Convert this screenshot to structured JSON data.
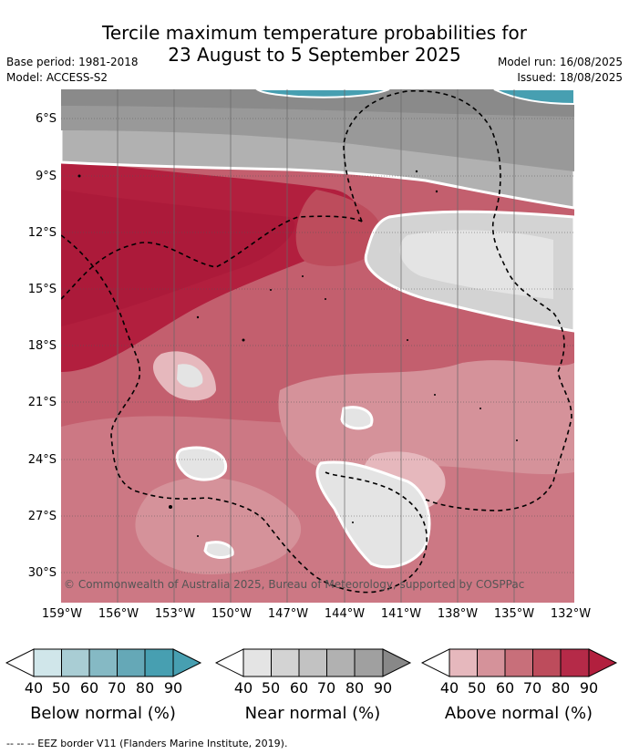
{
  "title": {
    "line1": "Tercile maximum temperature probabilities for",
    "line2": "23 August to 5 September 2025"
  },
  "left_meta": {
    "base_period": "Base period: 1981-2018",
    "model": "Model: ACCESS-S2"
  },
  "right_meta": {
    "model_run": "Model run: 16/08/2025",
    "issued": "Issued: 18/08/2025"
  },
  "map": {
    "lat_labels": [
      "6°S",
      "9°S",
      "12°S",
      "15°S",
      "18°S",
      "21°S",
      "24°S",
      "27°S",
      "30°S"
    ],
    "lon_labels": [
      "159°W",
      "156°W",
      "153°W",
      "150°W",
      "147°W",
      "144°W",
      "141°W",
      "138°W",
      "135°W",
      "132°W"
    ],
    "copyright": "© Commonwealth of Australia 2025, Bureau of Meteorology, supported by COSPPac"
  },
  "legend": {
    "ticks": [
      "40",
      "50",
      "60",
      "70",
      "80",
      "90"
    ],
    "below": {
      "title": "Below normal (%)",
      "colors": [
        "#ffffff",
        "#d0e6ea",
        "#a9cdd4",
        "#85b9c4",
        "#65a8b7",
        "#479fb1"
      ]
    },
    "near": {
      "title": "Near normal (%)",
      "colors": [
        "#ffffff",
        "#e4e4e4",
        "#d3d3d3",
        "#c2c2c2",
        "#b1b1b1",
        "#999999"
      ]
    },
    "above": {
      "title": "Above normal (%)",
      "colors": [
        "#ffffff",
        "#e6b8bd",
        "#d5929a",
        "#c86f7a",
        "#bd4c5c",
        "#b21f3e"
      ]
    }
  },
  "footnote": "--  --  -- EEZ border V11 (Flanders Marine Institute, 2019)."
}
